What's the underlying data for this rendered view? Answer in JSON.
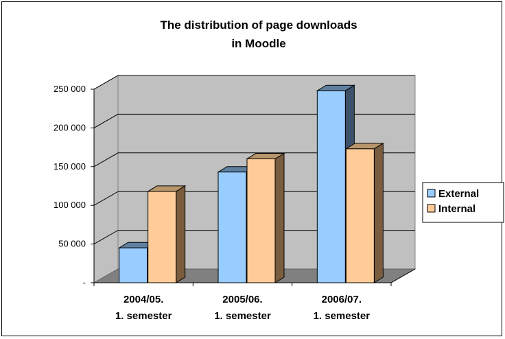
{
  "chart_data": {
    "type": "bar",
    "title_lines": [
      "The distribution of page downloads",
      "in Moodle"
    ],
    "categories": [
      [
        "2004/05.",
        "1. semester"
      ],
      [
        "2005/06.",
        "1. semester"
      ],
      [
        "2006/07.",
        "1. semester"
      ]
    ],
    "series": [
      {
        "name": "External",
        "values": [
          45000,
          143000,
          248000
        ],
        "color": "#99ccff",
        "side_color": "#3d526a",
        "top_color": "#5f7f9f"
      },
      {
        "name": "Internal",
        "values": [
          118000,
          160000,
          173000
        ],
        "color": "#ffcc99",
        "side_color": "#7a5c3e",
        "top_color": "#b8956b"
      }
    ],
    "ylim": [
      0,
      250000
    ],
    "y_ticks": [
      {
        "value": 0,
        "label": "-"
      },
      {
        "value": 50000,
        "label": "50 000"
      },
      {
        "value": 100000,
        "label": "100 000"
      },
      {
        "value": 150000,
        "label": "150 000"
      },
      {
        "value": 200000,
        "label": "200 000"
      },
      {
        "value": 250000,
        "label": "250 000"
      }
    ],
    "grid": true,
    "legend_position": "right",
    "wall_color": "#c0c0c0",
    "floor_color": "#808080"
  }
}
